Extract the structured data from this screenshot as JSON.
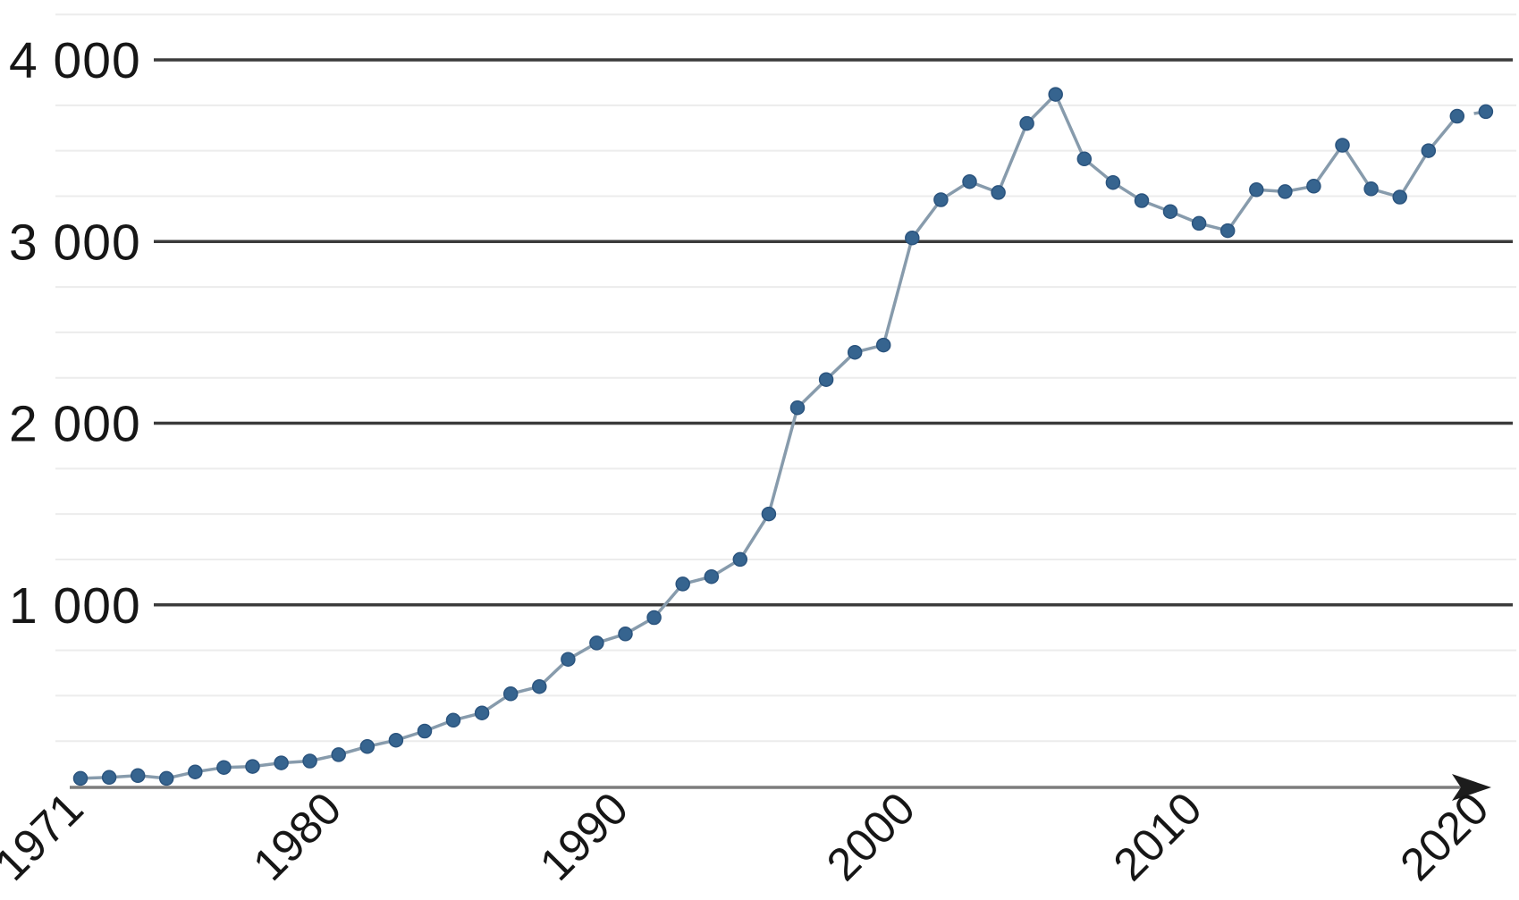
{
  "chart_data": {
    "type": "line",
    "title": "",
    "subtitle": "",
    "xlabel": "",
    "ylabel": "",
    "legend": "none",
    "grid": "major-dark + minor-light",
    "x": [
      1971,
      1972,
      1973,
      1974,
      1975,
      1976,
      1977,
      1978,
      1979,
      1980,
      1981,
      1982,
      1983,
      1984,
      1985,
      1986,
      1987,
      1988,
      1989,
      1990,
      1991,
      1992,
      1993,
      1994,
      1995,
      1996,
      1997,
      1998,
      1999,
      2000,
      2001,
      2002,
      2003,
      2004,
      2005,
      2006,
      2007,
      2008,
      2009,
      2010,
      2011,
      2012,
      2013,
      2014,
      2015,
      2016,
      2017,
      2018,
      2019,
      2020
    ],
    "values": [
      45,
      50,
      60,
      45,
      80,
      105,
      110,
      130,
      140,
      175,
      220,
      255,
      305,
      365,
      405,
      510,
      550,
      700,
      790,
      840,
      930,
      1115,
      1155,
      1250,
      1500,
      2085,
      2240,
      2390,
      2430,
      3020,
      3230,
      3330,
      3270,
      3650,
      3810,
      3455,
      3325,
      3225,
      3165,
      3100,
      3060,
      3285,
      3275,
      3305,
      3530,
      3290,
      3245,
      3500,
      3690,
      3715
    ],
    "series": [
      {
        "name": "value-series",
        "marker": "circle",
        "last_segment": "dashed"
      }
    ],
    "ylim": [
      0,
      4250
    ],
    "y_major_ticks": [
      1000,
      2000,
      3000,
      4000
    ],
    "y_tick_labels": [
      "1 000",
      "2 000",
      "3 000",
      "4 000"
    ],
    "y_minor_step": 250,
    "x_ticks": [
      1971,
      1980,
      1990,
      2000,
      2010,
      2020
    ],
    "x_tick_labels": [
      "1971",
      "1980",
      "1990",
      "2000",
      "2010",
      "2020"
    ],
    "x_tick_rotation_deg": -45,
    "x_axis_arrow": true,
    "colors": {
      "background": "#ffffff",
      "marker_fill": "#36648f",
      "marker_edge": "#2b547e",
      "line": "#879bac",
      "major_gridline": "#3b3b3b",
      "minor_gridline": "#ececec",
      "axis_line": "#7d7d7d",
      "arrow": "#1c1c1c",
      "label_text": "#161616"
    }
  }
}
